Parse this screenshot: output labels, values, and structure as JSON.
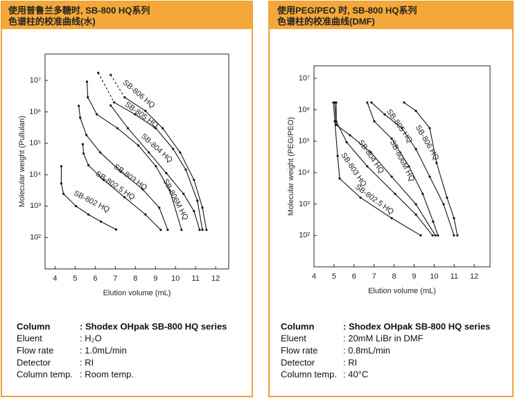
{
  "chart_data": [
    {
      "type": "line",
      "title_lines": [
        "使用普鲁兰多糖时, SB-800 HQ系列",
        "色谱柱的校准曲线(水)"
      ],
      "x_label": "Elution volume (mL)",
      "y_label": "Molecular weight (Pullulan)",
      "xlim": [
        3.5,
        12.65
      ],
      "ylim": [
        10,
        69000000
      ],
      "y_scale": "log",
      "grid": false,
      "color": "#111",
      "xticks": [
        4,
        5,
        6,
        7,
        8,
        9,
        10,
        11,
        12
      ],
      "yticks": [
        {
          "value": 100,
          "label": "10²"
        },
        {
          "value": 1000,
          "label": "10³"
        },
        {
          "value": 10000,
          "label": "10⁴"
        },
        {
          "value": 100000,
          "label": "10⁵"
        },
        {
          "value": 1000000,
          "label": "10⁶"
        },
        {
          "value": 10000000,
          "label": "10⁷"
        }
      ],
      "series": [
        {
          "name": "SB-802 HQ",
          "x": [
            4.31,
            4.31,
            4.42,
            5.04,
            5.66,
            6.28,
            7.04
          ],
          "values": [
            18600,
            5250,
            2450,
            1000,
            540,
            320,
            180
          ]
        },
        {
          "name": "SB-802.5 HQ",
          "x": [
            5.38,
            5.42,
            5.66,
            6.42,
            7.46,
            8.5,
            9.26
          ],
          "values": [
            93000,
            47000,
            20000,
            6800,
            1900,
            540,
            175
          ]
        },
        {
          "name": "SB-803 HQ",
          "x": [
            5.18,
            5.25,
            5.56,
            6.25,
            7.29,
            8.33,
            9.19,
            9.61
          ],
          "values": [
            1550000,
            650000,
            182000,
            51000,
            12300,
            3600,
            890,
            175
          ]
        },
        {
          "name": "SB-804 HQ",
          "x": [
            5.59,
            5.63,
            6.08,
            7.11,
            8.15,
            9.02,
            9.71,
            10.3
          ],
          "values": [
            9100000,
            2900000,
            830000,
            300000,
            85000,
            18600,
            3200,
            175
          ]
        },
        {
          "name": "SB-806M HQ",
          "x": [
            6.77,
            7.63,
            8.67,
            9.54,
            10.4,
            10.92,
            11.2
          ],
          "values": [
            1600000,
            300000,
            51000,
            11200,
            2450,
            690,
            175
          ]
        },
        {
          "name": "SB-805 HQ",
          "dashed_segments": 1,
          "x": [
            6.15,
            6.94,
            7.98,
            9.02,
            9.88,
            10.51,
            11.09,
            11.34
          ],
          "values": [
            17400000,
            2000000,
            830000,
            300000,
            66000,
            14500,
            1480,
            175
          ]
        },
        {
          "name": "SB-806 HQ",
          "dashed_segments": 1,
          "x": [
            6.77,
            7.46,
            8.5,
            9.36,
            10.23,
            10.92,
            11.34,
            11.54
          ],
          "values": [
            15000000,
            2900000,
            1070000,
            300000,
            51000,
            6800,
            890,
            175
          ]
        }
      ]
    },
    {
      "type": "line",
      "title_lines": [
        "使用PEG/PEO 时, SB-800 HQ系列",
        "色谱柱的校准曲线(DMF)"
      ],
      "x_label": "Elution volume (mL)",
      "y_label": "Molecular weight (PEG/PEO)",
      "xlim": [
        4,
        12.79
      ],
      "ylim": [
        10,
        25000000
      ],
      "y_scale": "log",
      "grid": false,
      "color": "#111",
      "xticks": [
        4,
        5,
        6,
        7,
        8,
        9,
        10,
        11,
        12
      ],
      "yticks": [
        {
          "value": 100,
          "label": "10²"
        },
        {
          "value": 1000,
          "label": "10³"
        },
        {
          "value": 10000,
          "label": "10⁴"
        },
        {
          "value": 100000,
          "label": "10⁵"
        },
        {
          "value": 1000000,
          "label": "10⁶"
        },
        {
          "value": 10000000,
          "label": "10⁷"
        }
      ],
      "series": [
        {
          "name": "SB-802.5 HQ",
          "x": [
            4.97,
            5.04,
            5.18,
            5.28,
            6.32,
            7.88,
            9.33
          ],
          "values": [
            1700000,
            430000,
            34000,
            6500,
            1600,
            355,
            100
          ]
        },
        {
          "name": "SB-803 HQ",
          "x": [
            5.11,
            5.11,
            5.63,
            6.66,
            8.05,
            9.09,
            9.92
          ],
          "values": [
            1700000,
            430000,
            93000,
            15800,
            2100,
            460,
            100
          ]
        },
        {
          "name": "SB-804 HQ",
          "x": [
            5.04,
            5.11,
            5.8,
            6.84,
            7.88,
            9.09,
            10.06
          ],
          "values": [
            1700000,
            330000,
            155000,
            44000,
            7400,
            980,
            100
          ]
        },
        {
          "name": "SB-806M HQ",
          "x": [
            6.66,
            7.01,
            7.88,
            8.74,
            9.43,
            9.95,
            10.19
          ],
          "values": [
            1700000,
            430000,
            120000,
            15800,
            2100,
            275,
            100
          ]
        },
        {
          "name": "SB-805 HQ",
          "x": [
            6.87,
            7.53,
            8.39,
            9.09,
            9.78,
            10.47,
            10.99
          ],
          "values": [
            1700000,
            710000,
            260000,
            56000,
            7400,
            980,
            100
          ]
        },
        {
          "name": "SB-806 HQ",
          "x": [
            8.5,
            9.09,
            9.78,
            10.12,
            10.64,
            10.99,
            11.16
          ],
          "values": [
            1700000,
            920000,
            260000,
            20400,
            1600,
            355,
            100
          ]
        }
      ]
    }
  ],
  "conditions": [
    [
      {
        "label": "Column",
        "value": ": Shodex OHpak SB-800 HQ series"
      },
      {
        "label": "Eluent",
        "value": ": H₂O"
      },
      {
        "label": "Flow rate",
        "value": ": 1.0mL/min"
      },
      {
        "label": "Detector",
        "value": ": RI"
      },
      {
        "label": "Column temp.",
        "value": ": Room temp."
      }
    ],
    [
      {
        "label": "Column",
        "value": ": Shodex OHpak SB-800 HQ series"
      },
      {
        "label": "Eluent",
        "value": ": 20mM LiBr in DMF"
      },
      {
        "label": "Flow rate",
        "value": ": 0.8mL/min"
      },
      {
        "label": "Detector",
        "value": ": RI"
      },
      {
        "label": "Column temp.",
        "value": ": 40°C"
      }
    ]
  ]
}
